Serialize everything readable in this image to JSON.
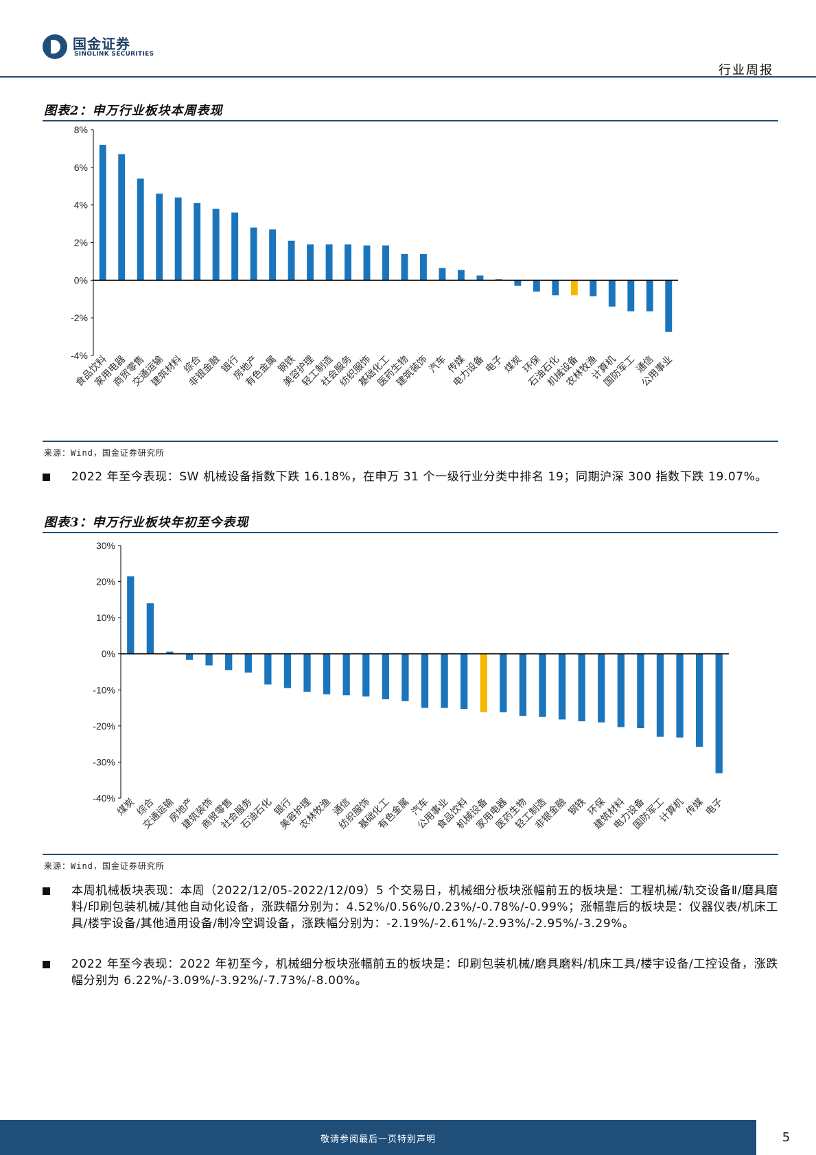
{
  "header": {
    "logo_cn": "国金证券",
    "logo_en": "SINOLINK SECURITIES",
    "report_type": "行业周报"
  },
  "figure2": {
    "title": "图表2：申万行业板块本周表现",
    "source": "来源：Wind，国金证券研究所"
  },
  "figure3": {
    "title": "图表3：申万行业板块年初至今表现",
    "source": "来源：Wind，国金证券研究所"
  },
  "paragraphs": {
    "p1": "2022 年至今表现：SW 机械设备指数下跌 16.18%，在申万 31 个一级行业分类中排名 19；同期沪深 300 指数下跌 19.07%。",
    "p2": "本周机械板块表现：本周（2022/12/05-2022/12/09）5 个交易日，机械细分板块涨幅前五的板块是：工程机械/轨交设备Ⅱ/磨具磨料/印刷包装机械/其他自动化设备，涨跌幅分别为：4.52%/0.56%/0.23%/-0.78%/-0.99%；涨幅靠后的板块是：仪器仪表/机床工具/楼宇设备/其他通用设备/制冷空调设备，涨跌幅分别为：-2.19%/-2.61%/-2.93%/-2.95%/-3.29%。",
    "p3": "2022 年至今表现：2022 年初至今，机械细分板块涨幅前五的板块是：印刷包装机械/磨具磨料/机床工具/楼宇设备/工控设备，涨跌幅分别为 6.22%/-3.09%/-3.92%/-7.73%/-8.00%。"
  },
  "footer": {
    "disclaimer": "敬请参阅最后一页特别声明",
    "page_number": "5"
  },
  "colors": {
    "bar": "#1b75bc",
    "highlight": "#f5b800",
    "brand": "#1f4e79"
  },
  "chart_data": [
    {
      "type": "bar",
      "title": "图表2：申万行业板块本周表现",
      "categories": [
        "食品饮料",
        "家用电器",
        "商贸零售",
        "交通运输",
        "建筑材料",
        "综合",
        "非银金融",
        "银行",
        "房地产",
        "有色金属",
        "钢铁",
        "美容护理",
        "轻工制造",
        "社会服务",
        "纺织服饰",
        "基础化工",
        "医药生物",
        "建筑装饰",
        "汽车",
        "传媒",
        "电力设备",
        "电子",
        "煤炭",
        "环保",
        "石油石化",
        "机械设备",
        "农林牧渔",
        "计算机",
        "国防军工",
        "通信",
        "公用事业"
      ],
      "values": [
        7.2,
        6.7,
        5.4,
        4.6,
        4.4,
        4.1,
        3.8,
        3.6,
        2.8,
        2.7,
        2.1,
        1.9,
        1.9,
        1.9,
        1.85,
        1.85,
        1.4,
        1.4,
        0.65,
        0.55,
        0.25,
        0.05,
        -0.3,
        -0.6,
        -0.8,
        -0.8,
        -0.85,
        -1.4,
        -1.65,
        -1.65,
        -2.75
      ],
      "highlight": "机械设备",
      "ylim": [
        -4,
        8
      ],
      "yticks": [
        8,
        6,
        4,
        2,
        0,
        -2,
        -4
      ],
      "ytick_labels": [
        "8%",
        "6%",
        "4%",
        "2%",
        "0%",
        "-2%",
        "-4%"
      ],
      "xlabel": "",
      "ylabel": "",
      "grid": false,
      "legend": "none"
    },
    {
      "type": "bar",
      "title": "图表3：申万行业板块年初至今表现",
      "categories": [
        "煤炭",
        "综合",
        "交通运输",
        "房地产",
        "建筑装饰",
        "商贸零售",
        "社会服务",
        "石油石化",
        "银行",
        "美容护理",
        "农林牧渔",
        "通信",
        "纺织服饰",
        "基础化工",
        "有色金属",
        "汽车",
        "公用事业",
        "食品饮料",
        "机械设备",
        "家用电器",
        "医药生物",
        "轻工制造",
        "非银金融",
        "钢铁",
        "环保",
        "建筑材料",
        "电力设备",
        "国防军工",
        "计算机",
        "传媒",
        "电子"
      ],
      "values": [
        21.5,
        14,
        0.6,
        -1.7,
        -3.2,
        -4.5,
        -5.2,
        -8.5,
        -9.5,
        -10.5,
        -11.2,
        -11.5,
        -11.8,
        -12.6,
        -13.1,
        -15,
        -15,
        -15.3,
        -16.18,
        -16.2,
        -17.2,
        -17.5,
        -18.2,
        -18.7,
        -19,
        -20.3,
        -20.6,
        -23,
        -23.2,
        -25.8,
        -33.1
      ],
      "highlight": "机械设备",
      "ylim": [
        -40,
        30
      ],
      "yticks": [
        30,
        20,
        10,
        0,
        -10,
        -20,
        -30,
        -40
      ],
      "ytick_labels": [
        "30%",
        "20%",
        "10%",
        "0%",
        "-10%",
        "-20%",
        "-30%",
        "-40%"
      ],
      "xlabel": "",
      "ylabel": "",
      "grid": false,
      "legend": "none"
    }
  ]
}
